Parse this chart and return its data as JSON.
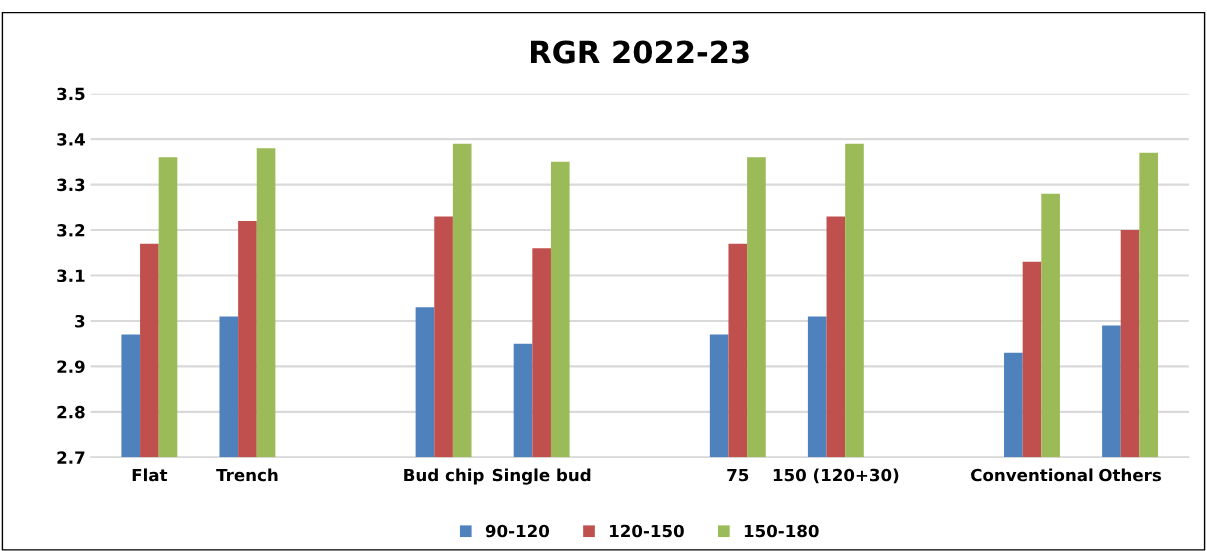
{
  "chart_data": {
    "type": "bar",
    "title": "RGR 2022-23",
    "categories": [
      "Flat",
      "Trench",
      null,
      "Bud chip",
      "Single bud",
      null,
      "75",
      "150 (120+30)",
      null,
      "Conventional",
      "Others"
    ],
    "series": [
      {
        "name": "90-120",
        "color": "#4f81bd",
        "values": [
          2.97,
          3.01,
          null,
          3.03,
          2.95,
          null,
          2.97,
          3.01,
          null,
          2.93,
          2.99
        ]
      },
      {
        "name": "120-150",
        "color": "#c0504d",
        "values": [
          3.17,
          3.22,
          null,
          3.23,
          3.16,
          null,
          3.17,
          3.23,
          null,
          3.13,
          3.2
        ]
      },
      {
        "name": "150-180",
        "color": "#9bbb59",
        "values": [
          3.36,
          3.38,
          null,
          3.39,
          3.35,
          null,
          3.36,
          3.39,
          null,
          3.28,
          3.37
        ]
      }
    ],
    "ylim": [
      2.7,
      3.5
    ],
    "yticks": [
      2.7,
      2.8,
      2.9,
      3,
      3.1,
      3.2,
      3.3,
      3.4,
      3.5
    ],
    "grid": "y",
    "legend": "bottom"
  }
}
